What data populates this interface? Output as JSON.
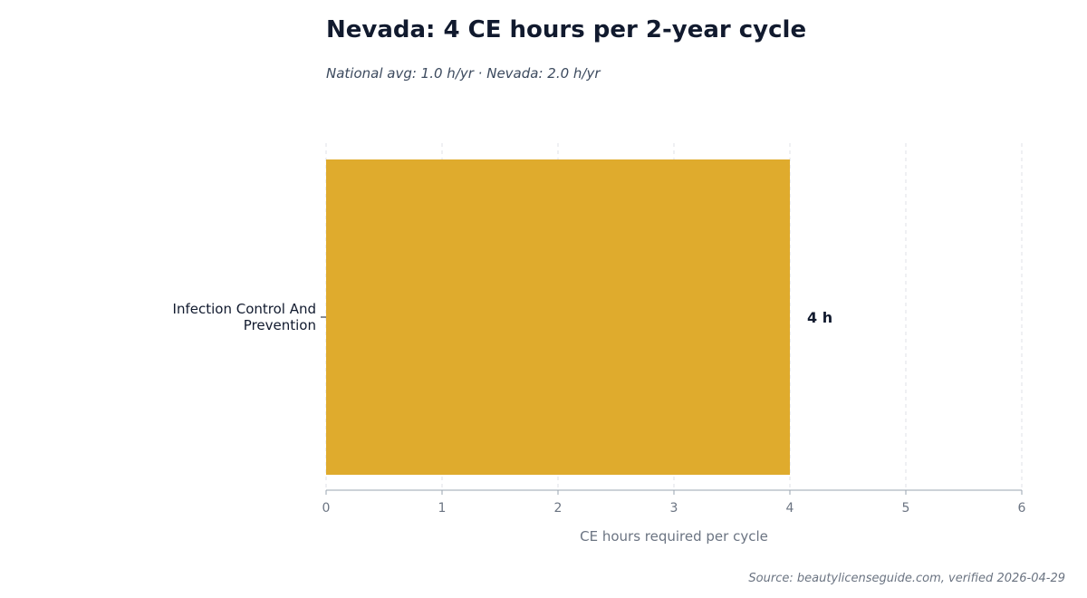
{
  "chart_data": {
    "type": "bar",
    "orientation": "horizontal",
    "title": "Nevada: 4 CE hours per 2-year cycle",
    "subtitle": "National avg: 1.0 h/yr · Nevada: 2.0 h/yr",
    "categories": [
      "Infection Control And Prevention"
    ],
    "category_lines": [
      [
        "Infection Control And",
        "Prevention"
      ]
    ],
    "values": [
      4
    ],
    "data_labels": [
      "4 h"
    ],
    "xlabel": "CE hours required per cycle",
    "ylabel": "",
    "xlim": [
      0,
      6
    ],
    "xticks": [
      0,
      1,
      2,
      3,
      4,
      5,
      6
    ],
    "grid": "vertical dashed",
    "bar_color": "#dfab2d"
  },
  "source": "Source: beautylicenseguide.com, verified 2026-04-29"
}
